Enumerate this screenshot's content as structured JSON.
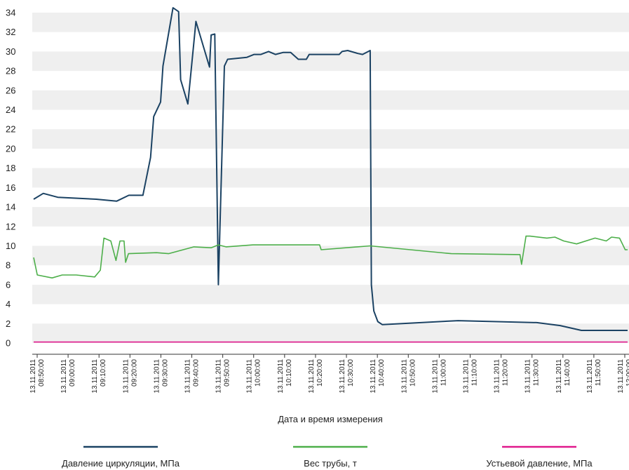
{
  "chart_data": {
    "type": "line",
    "title": "",
    "xlabel": "Дата и время измерения",
    "ylabel": "",
    "ylim": [
      0,
      34
    ],
    "yticks": [
      0,
      2,
      4,
      6,
      8,
      10,
      12,
      14,
      16,
      18,
      20,
      22,
      24,
      26,
      28,
      30,
      32,
      34
    ],
    "grid": "horizontal-bands",
    "legend_position": "bottom",
    "x_tick_labels": [
      {
        "t": 0,
        "date": "13.11.2011",
        "time": "08:50:00"
      },
      {
        "t": 10,
        "date": "13.11.2011",
        "time": "09:00:00"
      },
      {
        "t": 20,
        "date": "13.11.2011",
        "time": "09:10:00"
      },
      {
        "t": 30,
        "date": "13.11.2011",
        "time": "09:20:00"
      },
      {
        "t": 40,
        "date": "13.11.2011",
        "time": "09:30:00"
      },
      {
        "t": 50,
        "date": "13.11.2011",
        "time": "09:40:00"
      },
      {
        "t": 60,
        "date": "13.11.2011",
        "time": "09:50:00"
      },
      {
        "t": 70,
        "date": "13.11.2011",
        "time": "10:00:00"
      },
      {
        "t": 80,
        "date": "13.11.2011",
        "time": "10:10:00"
      },
      {
        "t": 90,
        "date": "13.11.2011",
        "time": "10:20:00"
      },
      {
        "t": 100,
        "date": "13.11.2011",
        "time": "10:30:00"
      },
      {
        "t": 110,
        "date": "13.11.2011",
        "time": "10:40:00"
      },
      {
        "t": 120,
        "date": "13.11.2011",
        "time": "10:50:00"
      },
      {
        "t": 130,
        "date": "13.11.2011",
        "time": "11:00:00"
      },
      {
        "t": 140,
        "date": "13.11.2011",
        "time": "11:10:00"
      },
      {
        "t": 150,
        "date": "13.11.2011",
        "time": "11:20:00"
      },
      {
        "t": 160,
        "date": "13.11.2011",
        "time": "11:30:00"
      },
      {
        "t": 170,
        "date": "13.11.2011",
        "time": "11:40:00"
      },
      {
        "t": 180,
        "date": "13.11.2011",
        "time": "11:50:00"
      },
      {
        "t": 190,
        "date": "13.11.2011",
        "time": "12:00:00"
      }
    ],
    "series": [
      {
        "name": "Давление циркуляции, МПа",
        "color": "#1b4263",
        "points": [
          [
            -10.6,
            14.8
          ],
          [
            -8.2,
            15.4
          ],
          [
            -4.6,
            15.0
          ],
          [
            5.0,
            14.8
          ],
          [
            10.1,
            14.6
          ],
          [
            13.1,
            15.2
          ],
          [
            16.6,
            15.2
          ],
          [
            18.5,
            19.1
          ],
          [
            19.3,
            23.3
          ],
          [
            21.0,
            24.8
          ],
          [
            21.6,
            28.5
          ],
          [
            24.1,
            34.5
          ],
          [
            25.5,
            34.1
          ],
          [
            26.0,
            27.1
          ],
          [
            27.8,
            24.6
          ],
          [
            29.8,
            33.1
          ],
          [
            33.2,
            28.4
          ],
          [
            33.6,
            31.7
          ],
          [
            34.5,
            31.8
          ],
          [
            35.4,
            6.0
          ],
          [
            36.9,
            28.5
          ],
          [
            37.7,
            29.2
          ],
          [
            42.5,
            29.4
          ],
          [
            44.3,
            29.7
          ],
          [
            46.0,
            29.7
          ],
          [
            47.9,
            30.0
          ],
          [
            49.6,
            29.7
          ],
          [
            51.5,
            29.9
          ],
          [
            53.4,
            29.9
          ],
          [
            55.3,
            29.2
          ],
          [
            57.3,
            29.2
          ],
          [
            58.0,
            29.7
          ],
          [
            65.5,
            29.7
          ],
          [
            66.2,
            30.0
          ],
          [
            67.6,
            30.1
          ],
          [
            70.1,
            29.8
          ],
          [
            71.3,
            29.7
          ],
          [
            73.2,
            30.1
          ],
          [
            73.5,
            6.0
          ],
          [
            74.1,
            3.3
          ],
          [
            75.1,
            2.2
          ],
          [
            76.2,
            1.9
          ],
          [
            95.1,
            2.3
          ],
          [
            114.7,
            2.1
          ],
          [
            120.5,
            1.8
          ],
          [
            125.8,
            1.3
          ],
          [
            137.3,
            1.3
          ]
        ]
      },
      {
        "name": "Вес трубы, т",
        "color": "#4daf4a",
        "points": [
          [
            -10.6,
            8.8
          ],
          [
            -9.7,
            7.0
          ],
          [
            -6.0,
            6.7
          ],
          [
            -3.5,
            7.0
          ],
          [
            0.0,
            7.0
          ],
          [
            4.6,
            6.8
          ],
          [
            6.0,
            7.5
          ],
          [
            6.9,
            10.8
          ],
          [
            8.6,
            10.5
          ],
          [
            9.9,
            8.5
          ],
          [
            10.9,
            10.5
          ],
          [
            11.9,
            10.5
          ],
          [
            12.3,
            8.3
          ],
          [
            13.0,
            9.2
          ],
          [
            20.0,
            9.3
          ],
          [
            23.0,
            9.2
          ],
          [
            29.3,
            9.9
          ],
          [
            33.6,
            9.8
          ],
          [
            35.4,
            10.1
          ],
          [
            37.3,
            9.9
          ],
          [
            44.0,
            10.1
          ],
          [
            60.6,
            10.1
          ],
          [
            61.0,
            9.6
          ],
          [
            73.2,
            10.0
          ],
          [
            93.4,
            9.2
          ],
          [
            110.5,
            9.1
          ],
          [
            110.9,
            8.1
          ],
          [
            112.0,
            11.0
          ],
          [
            113.0,
            11.0
          ],
          [
            117.2,
            10.8
          ],
          [
            119.2,
            10.9
          ],
          [
            121.4,
            10.5
          ],
          [
            124.6,
            10.2
          ],
          [
            129.2,
            10.8
          ],
          [
            132.0,
            10.5
          ],
          [
            133.3,
            10.9
          ],
          [
            135.3,
            10.8
          ],
          [
            136.7,
            9.6
          ],
          [
            137.3,
            9.6
          ]
        ]
      },
      {
        "name": "Устьевой давление, МПа",
        "color": "#e0198c",
        "points": [
          [
            -10.6,
            0.1
          ],
          [
            137.3,
            0.1
          ]
        ]
      }
    ]
  }
}
